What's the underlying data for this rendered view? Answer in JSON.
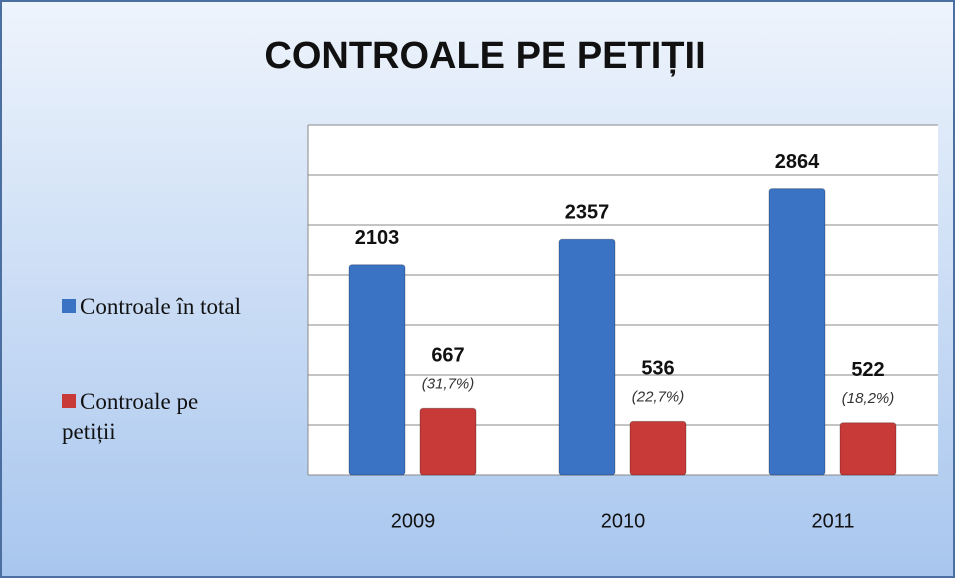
{
  "chart_data": {
    "type": "bar",
    "title": "CONTROALE PE PETIȚII",
    "categories": [
      "2009",
      "2010",
      "2011"
    ],
    "series": [
      {
        "name": "Controale în total",
        "color": "#3a72c4",
        "values": [
          2103,
          2357,
          2864
        ]
      },
      {
        "name": "Controale pe petiții",
        "color": "#c83a38",
        "values": [
          667,
          536,
          522
        ]
      }
    ],
    "annotations": [
      "(31,7%)",
      "(22,7%)",
      "(18,2%)"
    ],
    "ylim": [
      0,
      3500
    ],
    "yticks": [
      0,
      500,
      1000,
      1500,
      2000,
      2500,
      3000,
      3500
    ],
    "grid": true,
    "legend": "left"
  }
}
